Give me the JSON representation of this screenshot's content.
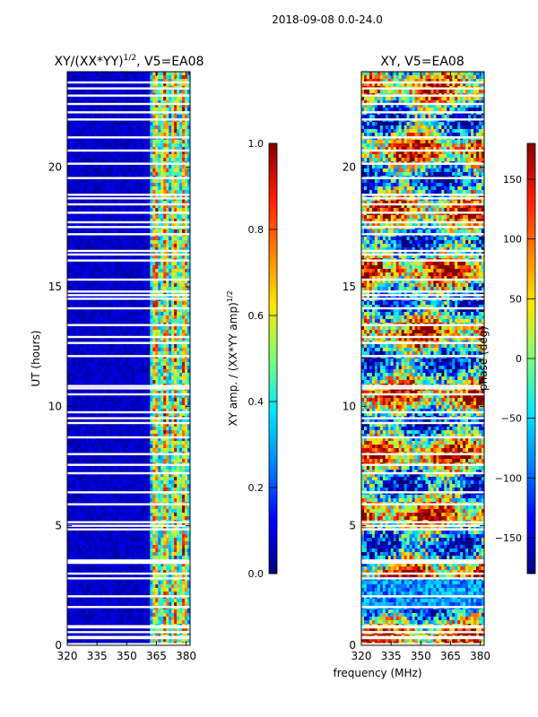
{
  "suptitle": "2018-09-08 0.0-24.0",
  "shared_xlabel": "frequency (MHz)",
  "colormap": [
    "#00007f",
    "#0000ff",
    "#0080ff",
    "#00e5ff",
    "#7dff7a",
    "#ffe600",
    "#ff8000",
    "#ff1a00",
    "#800000"
  ],
  "chart_data": [
    {
      "type": "heatmap",
      "title_main": "XY/(XX*YY)",
      "title_exp": "1/2",
      "title_tail": ", V5=EA08",
      "xlabel": "",
      "ylabel": "UT (hours)",
      "xlim": [
        320,
        382
      ],
      "ylim": [
        0,
        24
      ],
      "xticks": [
        320,
        335,
        350,
        365,
        380
      ],
      "yticks": [
        0,
        5,
        10,
        15,
        20
      ],
      "value_description": "low amplitude (~0.05) below 362 MHz, high amplitude (0.3-0.9) in bands near 364-380 MHz",
      "colorbar": {
        "label_main": "XY amp. / (XX*YY amp)",
        "label_exp": "1/2",
        "min": 0.0,
        "max": 1.0,
        "ticks": [
          "0.0",
          "0.2",
          "0.4",
          "0.6",
          "0.8",
          "1.0"
        ],
        "tick_values": [
          0.0,
          0.2,
          0.4,
          0.6,
          0.8,
          1.0
        ]
      }
    },
    {
      "type": "heatmap",
      "title_main": "XY, V5=EA08",
      "xlabel": "",
      "ylabel": "",
      "xlim": [
        320,
        382
      ],
      "ylim": [
        0,
        24
      ],
      "xticks": [
        320,
        335,
        350,
        365,
        380
      ],
      "yticks": [
        0,
        5,
        10,
        15,
        20
      ],
      "value_description": "phase in degrees, mostly mixed warm/cool values across band",
      "colorbar": {
        "label_main": "phase (deg)",
        "min": -180,
        "max": 180,
        "ticks": [
          "150",
          "100",
          "50",
          "0",
          "−50",
          "−100",
          "−150"
        ],
        "tick_values": [
          150,
          100,
          50,
          0,
          -50,
          -100,
          -150
        ]
      }
    }
  ],
  "gap_hours": [
    0.05,
    0.3,
    0.35,
    0.55,
    0.75,
    0.8,
    1.6,
    2.05,
    2.8,
    3.0,
    3.45,
    3.5,
    3.55,
    4.85,
    5.0,
    5.15,
    5.9,
    6.4,
    7.2,
    7.55,
    8.0,
    8.7,
    9.3,
    9.5,
    9.75,
    10.5,
    10.75,
    10.85,
    12.1,
    12.65,
    12.9,
    13.4,
    14.1,
    14.5,
    14.65,
    14.8,
    15.3,
    16.1,
    16.35,
    16.5,
    17.2,
    17.5,
    17.7,
    18.1,
    18.45,
    18.7,
    18.85,
    19.55,
    20.15,
    20.7,
    21.25,
    22.0,
    22.3,
    22.65,
    23.0,
    23.3,
    23.55
  ]
}
